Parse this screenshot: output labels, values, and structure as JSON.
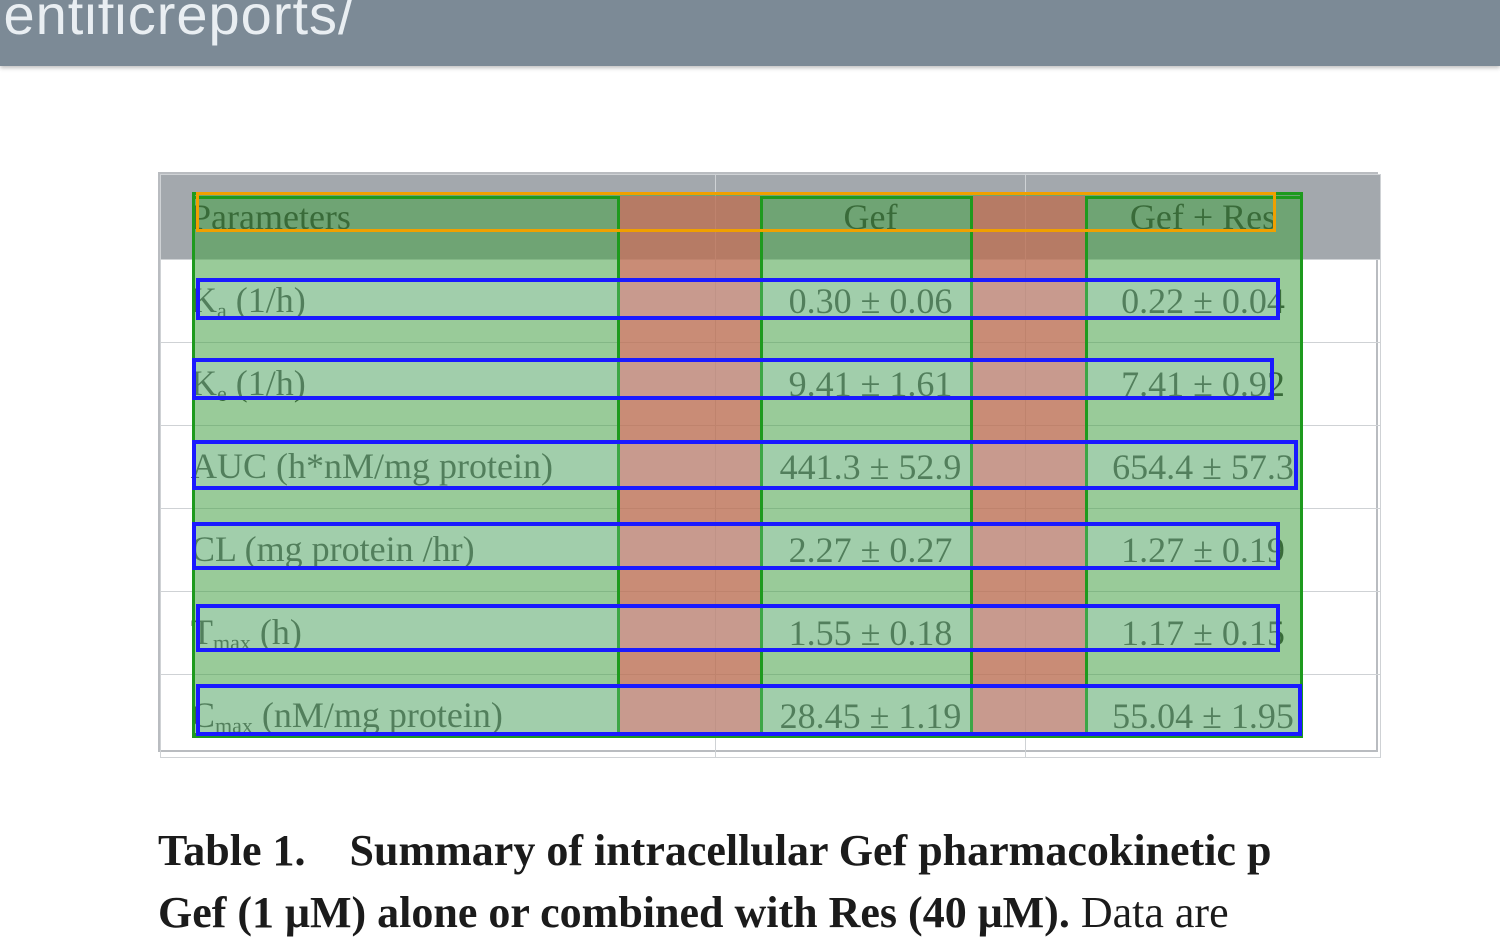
{
  "banner": {
    "text": "ientificreports/"
  },
  "table": {
    "headers": [
      "Parameters",
      "Gef",
      "Gef + Res"
    ],
    "rows": [
      {
        "param_main": "K",
        "param_sub": "a",
        "param_rest": " (1/h)",
        "gef": "0.30 ± 0.06",
        "gefres": "0.22 ± 0.04"
      },
      {
        "param_main": "K",
        "param_sub": "e",
        "param_rest": " (1/h)",
        "gef": "9.41 ± 1.61",
        "gefres": "7.41 ± 0.92"
      },
      {
        "param_main": "AUC (h*nM/mg protein)",
        "param_sub": "",
        "param_rest": "",
        "gef": "441.3 ± 52.9",
        "gefres": "654.4 ± 57.3"
      },
      {
        "param_main": "CL (mg protein /hr)",
        "param_sub": "",
        "param_rest": "",
        "gef": "2.27 ± 0.27",
        "gefres": "1.27 ± 0.19"
      },
      {
        "param_main": "T",
        "param_sub": "max",
        "param_rest": " (h)",
        "gef": "1.55 ± 0.18",
        "gefres": "1.17 ± 0.15"
      },
      {
        "param_main": "C",
        "param_sub": "max",
        "param_rest": " (nM/mg protein)",
        "gef": "28.45 ± 1.19",
        "gefres": "55.04 ± 1.95"
      }
    ]
  },
  "caption": {
    "label": "Table 1.",
    "title": "Summary of intracellular Gef pharmacokinetic p",
    "line2_bold": "Gef (1 μM) alone or combined with Res (40 μM).",
    "line2_rest": " Data are"
  },
  "colors": {
    "banner": "#7c8a96",
    "header_bg": "#a3a8ad",
    "overlay_green": "#46a046",
    "overlay_red": "#f05a5a",
    "overlay_blue": "#1a1aff",
    "overlay_orange": "#f0a000"
  }
}
